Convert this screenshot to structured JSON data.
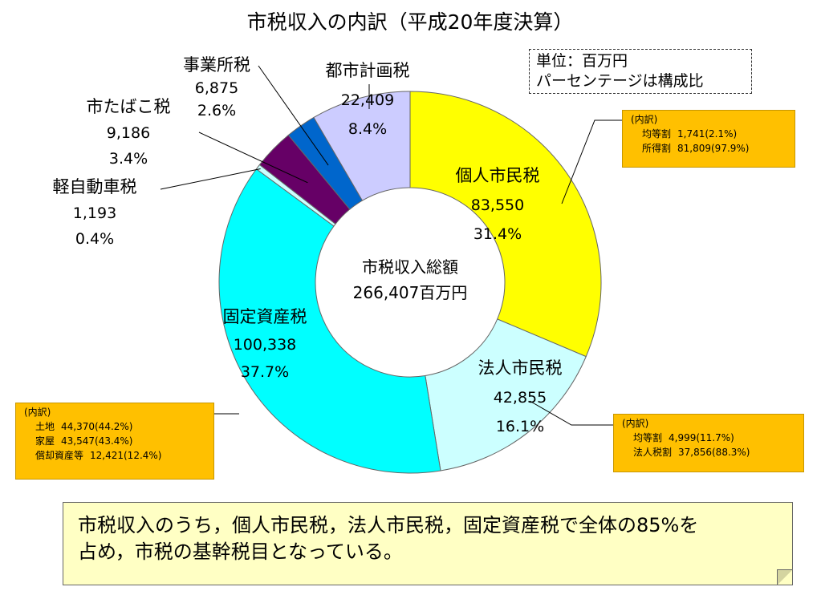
{
  "chart_data": {
    "type": "pie",
    "title": "市税収入の内訳（平成20年度決算）",
    "categories": [
      "個人市民税",
      "法人市民税",
      "固定資産税",
      "軽自動車税",
      "市たばこ税",
      "事業所税",
      "都市計画税"
    ],
    "values": [
      83550,
      42855,
      100338,
      1193,
      9186,
      6875,
      22409
    ],
    "value_labels": [
      "83,550",
      "42,855",
      "100,338",
      "1,193",
      "9,186",
      "6,875",
      "22,409"
    ],
    "percent_labels": [
      "31.4%",
      "16.1%",
      "37.7%",
      "0.4%",
      "3.4%",
      "2.6%",
      "8.4%"
    ],
    "colors": [
      "#ffff00",
      "#ccffff",
      "#00ffff",
      "#ccffff",
      "#660066",
      "#0066cc",
      "#ccccff"
    ],
    "center_label": "市税収入総額",
    "center_value": "266,407百万円",
    "unit_lines": [
      "単位：百万円",
      "パーセンテージは構成比"
    ]
  },
  "notes": {
    "kojin": {
      "head": "(内訳)",
      "items": [
        {
          "name": "均等割",
          "value": "1,741(2.1%)"
        },
        {
          "name": "所得割",
          "value": "81,809(97.9%)"
        }
      ]
    },
    "hojin": {
      "head": "(内訳)",
      "items": [
        {
          "name": "均等割",
          "value": "4,999(11.7%)"
        },
        {
          "name": "法人税割",
          "value": "37,856(88.3%)"
        }
      ]
    },
    "kotei": {
      "head": "(内訳)",
      "items": [
        {
          "name": "土地",
          "value": "44,370(44.2%)"
        },
        {
          "name": "家屋",
          "value": "43,547(43.4%)"
        },
        {
          "name": "償却資産等",
          "value": "12,421(12.4%)"
        }
      ]
    }
  },
  "summary": {
    "line1": "市税収入のうち，個人市民税，法人市民税，固定資産税で全体の85%を",
    "line2": "占め，市税の基幹税目となっている。"
  }
}
